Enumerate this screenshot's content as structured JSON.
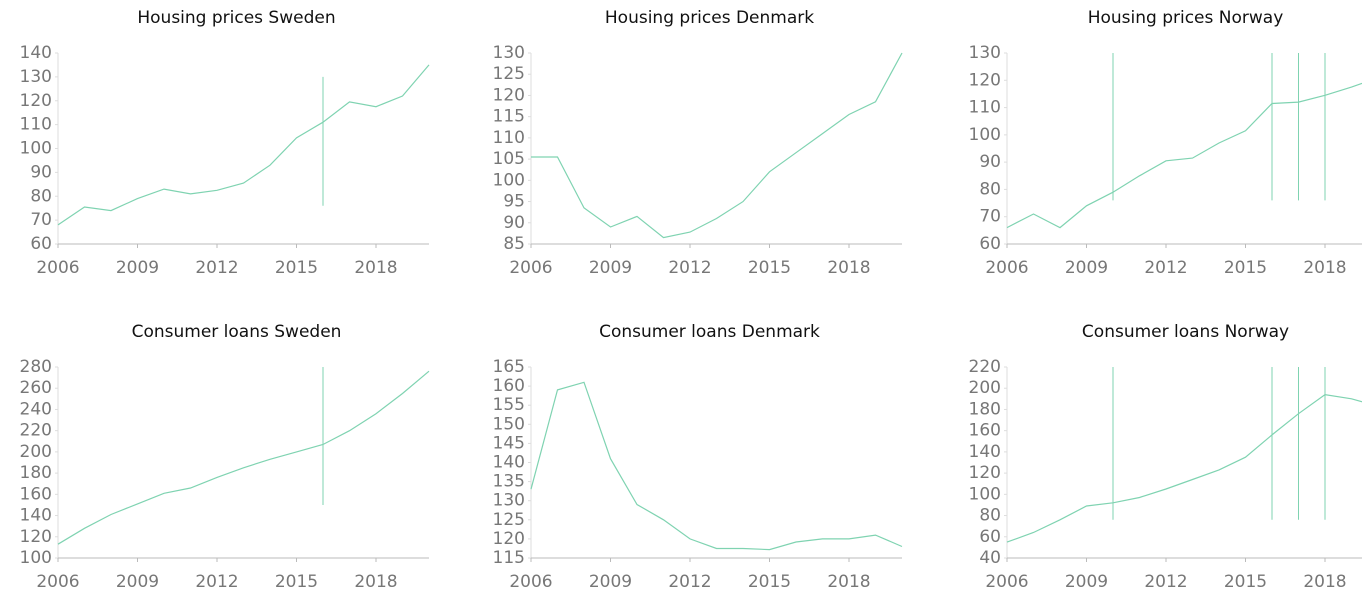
{
  "chart_data": [
    {
      "type": "line",
      "title": "Housing prices Sweden",
      "x": [
        2006,
        2007,
        2008,
        2009,
        2010,
        2011,
        2012,
        2013,
        2014,
        2015,
        2016,
        2017,
        2018,
        2019,
        2020
      ],
      "series": [
        {
          "color": "#7fd3b1",
          "values": [
            68,
            75.5,
            74,
            79,
            83,
            81,
            82.5,
            85.5,
            93,
            104.5,
            111,
            119.5,
            117.5,
            122,
            135
          ]
        }
      ],
      "xlim": [
        2006,
        2020
      ],
      "xticks": [
        2006,
        2009,
        2012,
        2015,
        2018
      ],
      "ylim": [
        60,
        140
      ],
      "yticks": [
        60,
        70,
        80,
        90,
        100,
        110,
        120,
        130,
        140
      ],
      "vlines": [
        {
          "x": 2016,
          "from": 76,
          "to": 130
        }
      ]
    },
    {
      "type": "line",
      "title": "Housing prices Denmark",
      "x": [
        2006,
        2007,
        2008,
        2009,
        2010,
        2011,
        2012,
        2013,
        2014,
        2015,
        2016,
        2017,
        2018,
        2019,
        2020
      ],
      "series": [
        {
          "color": "#7fd3b1",
          "values": [
            105.5,
            105.5,
            93.5,
            89,
            91.5,
            86.5,
            87.8,
            91,
            95,
            102,
            106.5,
            111,
            115.5,
            118.5,
            130
          ]
        }
      ],
      "xlim": [
        2006,
        2020
      ],
      "xticks": [
        2006,
        2009,
        2012,
        2015,
        2018
      ],
      "ylim": [
        85,
        130
      ],
      "yticks": [
        85,
        90,
        95,
        100,
        105,
        110,
        115,
        120,
        125,
        130
      ],
      "vlines": []
    },
    {
      "type": "line",
      "title": "Housing prices Norway",
      "x": [
        2006,
        2007,
        2008,
        2009,
        2010,
        2011,
        2012,
        2013,
        2014,
        2015,
        2016,
        2017,
        2018,
        2019,
        2020
      ],
      "series": [
        {
          "color": "#7fd3b1",
          "values": [
            66,
            71,
            66,
            74,
            79,
            85,
            90.5,
            91.5,
            97,
            101.5,
            111.5,
            112,
            114.5,
            117.5,
            121
          ]
        }
      ],
      "xlim": [
        2006,
        2020
      ],
      "xticks": [
        2006,
        2009,
        2012,
        2015,
        2018
      ],
      "ylim": [
        60,
        130
      ],
      "yticks": [
        60,
        70,
        80,
        90,
        100,
        110,
        120,
        130
      ],
      "vlines": [
        {
          "x": 2010,
          "from": 76,
          "to": 130
        },
        {
          "x": 2016,
          "from": 76,
          "to": 130
        },
        {
          "x": 2017,
          "from": 76,
          "to": 130
        },
        {
          "x": 2018,
          "from": 76,
          "to": 130
        }
      ]
    },
    {
      "type": "line",
      "title": "Consumer loans Sweden",
      "x": [
        2006,
        2007,
        2008,
        2009,
        2010,
        2011,
        2012,
        2013,
        2014,
        2015,
        2016,
        2017,
        2018,
        2019,
        2020
      ],
      "series": [
        {
          "color": "#7fd3b1",
          "values": [
            113,
            128,
            141,
            151,
            161,
            166,
            176,
            185,
            193,
            200,
            207,
            220,
            236,
            255,
            276
          ]
        }
      ],
      "xlim": [
        2006,
        2020
      ],
      "xticks": [
        2006,
        2009,
        2012,
        2015,
        2018
      ],
      "ylim": [
        100,
        280
      ],
      "yticks": [
        100,
        120,
        140,
        160,
        180,
        200,
        220,
        240,
        260,
        280
      ],
      "vlines": [
        {
          "x": 2016,
          "from": 150,
          "to": 280
        }
      ]
    },
    {
      "type": "line",
      "title": "Consumer loans Denmark",
      "x": [
        2006,
        2007,
        2008,
        2009,
        2010,
        2011,
        2012,
        2013,
        2014,
        2015,
        2016,
        2017,
        2018,
        2019,
        2020
      ],
      "series": [
        {
          "color": "#7fd3b1",
          "values": [
            133,
            159,
            161,
            141,
            129,
            125,
            120,
            117.5,
            117.5,
            117.2,
            119.2,
            120,
            120,
            121,
            118
          ]
        }
      ],
      "xlim": [
        2006,
        2020
      ],
      "xticks": [
        2006,
        2009,
        2012,
        2015,
        2018
      ],
      "ylim": [
        115,
        165
      ],
      "yticks": [
        115,
        120,
        125,
        130,
        135,
        140,
        145,
        150,
        155,
        160,
        165
      ],
      "vlines": []
    },
    {
      "type": "line",
      "title": "Consumer loans Norway",
      "x": [
        2006,
        2007,
        2008,
        2009,
        2010,
        2011,
        2012,
        2013,
        2014,
        2015,
        2016,
        2017,
        2018,
        2019,
        2020
      ],
      "series": [
        {
          "color": "#7fd3b1",
          "values": [
            55,
            64,
            76,
            89,
            92,
            97,
            105,
            114,
            123,
            135,
            156,
            176,
            194,
            190,
            183
          ]
        }
      ],
      "xlim": [
        2006,
        2020
      ],
      "xticks": [
        2006,
        2009,
        2012,
        2015,
        2018
      ],
      "ylim": [
        40,
        220
      ],
      "yticks": [
        40,
        60,
        80,
        100,
        120,
        140,
        160,
        180,
        200,
        220
      ],
      "vlines": [
        {
          "x": 2010,
          "from": 76,
          "to": 220
        },
        {
          "x": 2016,
          "from": 76,
          "to": 220
        },
        {
          "x": 2017,
          "from": 76,
          "to": 220
        },
        {
          "x": 2018,
          "from": 76,
          "to": 220
        }
      ]
    }
  ]
}
